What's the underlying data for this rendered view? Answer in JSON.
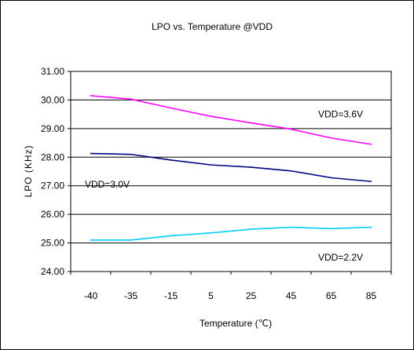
{
  "chart_data": {
    "type": "line",
    "title": "LPO vs. Temperature @VDD",
    "xlabel": "Temperature (℃)",
    "ylabel": "LPO (KHz)",
    "ylim": [
      24.0,
      31.0
    ],
    "ytick_labels": [
      "24.00",
      "25.00",
      "26.00",
      "27.00",
      "28.00",
      "29.00",
      "30.00",
      "31.00"
    ],
    "categories": [
      "-40",
      "-35",
      "-15",
      "5",
      "25",
      "45",
      "65",
      "85"
    ],
    "grid": true,
    "series": [
      {
        "name": "VDD=3.6V",
        "color": "#ff00ff",
        "values": [
          30.15,
          30.03,
          29.72,
          29.43,
          29.2,
          28.98,
          28.67,
          28.45
        ]
      },
      {
        "name": "VDD=3.0V",
        "color": "#000080",
        "values": [
          28.13,
          28.1,
          27.9,
          27.73,
          27.65,
          27.52,
          27.28,
          27.15
        ]
      },
      {
        "name": "VDD=2.2V",
        "color": "#00ccff",
        "values": [
          25.1,
          25.1,
          25.25,
          25.35,
          25.48,
          25.55,
          25.5,
          25.55
        ]
      }
    ]
  }
}
